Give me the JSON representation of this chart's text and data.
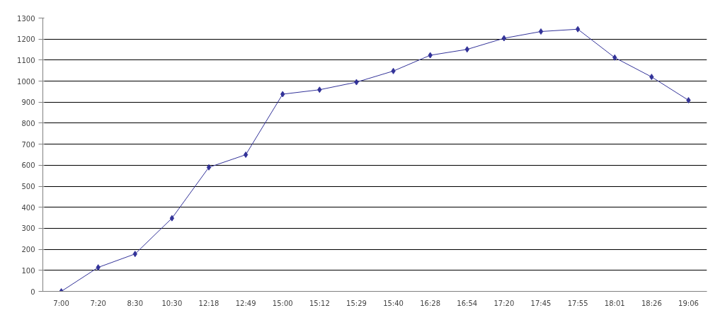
{
  "chart_data": {
    "type": "line",
    "categories": [
      "7:00",
      "7:20",
      "8:30",
      "10:30",
      "12:18",
      "12:49",
      "15:00",
      "15:12",
      "15:29",
      "15:40",
      "16:28",
      "16:54",
      "17:20",
      "17:45",
      "17:55",
      "18:01",
      "18:26",
      "19:06"
    ],
    "series": [
      {
        "color": "#333399",
        "values": [
          0,
          114,
          178,
          348,
          590,
          650,
          938,
          959,
          995,
          1048,
          1123,
          1151,
          1204,
          1236,
          1247,
          1112,
          1020,
          909
        ]
      }
    ],
    "ylim": [
      0,
      1300
    ],
    "yticks": [
      0,
      100,
      200,
      300,
      400,
      500,
      600,
      700,
      800,
      900,
      1000,
      1100,
      1200,
      1300
    ],
    "grid": "y",
    "marker": "diamond",
    "line_style": "solid"
  }
}
